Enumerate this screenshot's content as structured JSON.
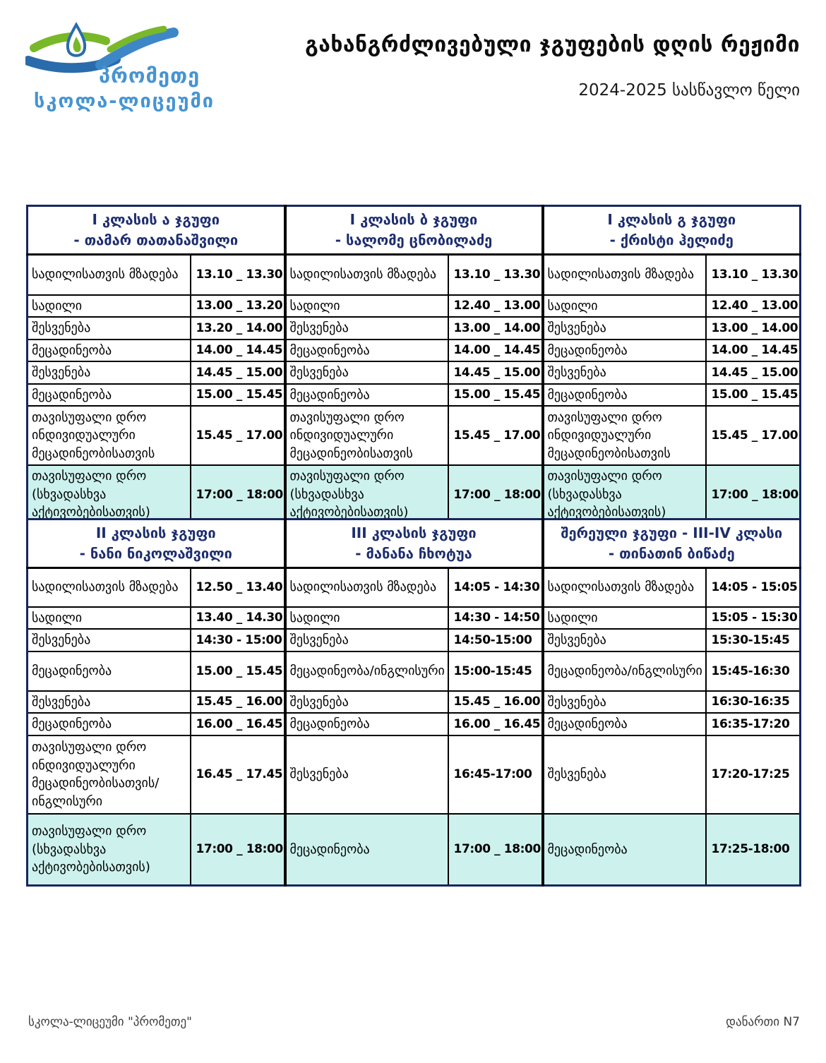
{
  "logo": {
    "name": "პრომეთე",
    "subtitle": "სკოლა-ლიცეუმი",
    "colors": {
      "dark_blue": "#2a6cab",
      "light_blue": "#3e87c7",
      "green": "#79b829",
      "text_blue": "#4794d2"
    }
  },
  "header": {
    "title": "გახანგრძლივებული ჯგუფების დღის რეჟიმი",
    "subtitle": "2024-2025 სასწავლო წელი"
  },
  "colors": {
    "header_text_navy": "#1c2d6e",
    "outer_border_navy": "#17275c",
    "inner_border": "#000000",
    "highlight_row": "#cdf2ee"
  },
  "tables": [
    {
      "id": "table-1",
      "groups": [
        {
          "line1": "I კლასის ა ჯგუფი",
          "line2": "- თამარ თათანაშვილი"
        },
        {
          "line1": "I კლასის ბ ჯგუფი",
          "line2": "- სალომე ცნობილაძე"
        },
        {
          "line1": "I კლასის გ ჯგუფი",
          "line2": "- ქრისტი ჰელიძე"
        }
      ],
      "rows": [
        {
          "highlight": false,
          "cells": [
            {
              "activity": "სადილისათვის მზადება",
              "time": "13.10 _ 13.30"
            },
            {
              "activity": "სადილისათვის მზადება",
              "time": "13.10 _ 13.30"
            },
            {
              "activity": "სადილისათვის მზადება",
              "time": "13.10 _ 13.30"
            }
          ]
        },
        {
          "highlight": false,
          "cells": [
            {
              "activity": "სადილი",
              "time": "13.00 _ 13.20"
            },
            {
              "activity": "სადილი",
              "time": "12.40 _ 13.00"
            },
            {
              "activity": "სადილი",
              "time": "12.40 _ 13.00"
            }
          ]
        },
        {
          "highlight": false,
          "cells": [
            {
              "activity": "შესვენება",
              "time": "13.20 _ 14.00"
            },
            {
              "activity": "შესვენება",
              "time": "13.00 _ 14.00"
            },
            {
              "activity": "შესვენება",
              "time": "13.00 _ 14.00"
            }
          ]
        },
        {
          "highlight": false,
          "cells": [
            {
              "activity": "მეცადინეობა",
              "time": "14.00 _ 14.45"
            },
            {
              "activity": "მეცადინეობა",
              "time": "14.00 _ 14.45"
            },
            {
              "activity": "მეცადინეობა",
              "time": "14.00 _ 14.45"
            }
          ]
        },
        {
          "highlight": false,
          "cells": [
            {
              "activity": "შესვენება",
              "time": "14.45 _ 15.00"
            },
            {
              "activity": "შესვენება",
              "time": "14.45 _ 15.00"
            },
            {
              "activity": "შესვენება",
              "time": "14.45 _ 15.00"
            }
          ]
        },
        {
          "highlight": false,
          "cells": [
            {
              "activity": "მეცადინეობა",
              "time": "15.00 _ 15.45"
            },
            {
              "activity": "მეცადინეობა",
              "time": "15.00 _ 15.45"
            },
            {
              "activity": "მეცადინეობა",
              "time": "15.00 _ 15.45"
            }
          ]
        },
        {
          "highlight": false,
          "cells": [
            {
              "activity": "თავისუფალი დრო ინდივიდუალური მეცადინეობისათვის",
              "time": "15.45 _ 17.00"
            },
            {
              "activity": "თავისუფალი დრო ინდივიდუალური მეცადინეობისათვის",
              "time": "15.45 _ 17.00"
            },
            {
              "activity": "თავისუფალი დრო ინდივიდუალური მეცადინეობისათვის",
              "time": "15.45 _ 17.00"
            }
          ]
        },
        {
          "highlight": true,
          "cells": [
            {
              "activity": "თავისუფალი დრო (სხვადასხვა აქტივობებისათვის)",
              "time": "17:00 _ 18:00"
            },
            {
              "activity": "თავისუფალი დრო (სხვადასხვა აქტივობებისათვის)",
              "time": "17:00 _ 18:00"
            },
            {
              "activity": "თავისუფალი დრო (სხვადასხვა აქტივობებისათვის)",
              "time": "17:00 _ 18:00"
            }
          ]
        }
      ]
    },
    {
      "id": "table-2",
      "groups": [
        {
          "line1": "II კლასის ჯგუფი",
          "line2": "- ნანი ნიკოლაშვილი"
        },
        {
          "line1": "III კლასის ჯგუფი",
          "line2": "- მანანა ჩხოტუა"
        },
        {
          "line1": "შერეული ჯგუფი - III-IV კლასი",
          "line2": "- თინათინ ბიწაძე"
        }
      ],
      "rows": [
        {
          "highlight": false,
          "cells": [
            {
              "activity": "სადილისათვის მზადება",
              "time": "12.50 _ 13.40"
            },
            {
              "activity": "სადილისათვის მზადება",
              "time": "14:05 - 14:30"
            },
            {
              "activity": "სადილისათვის მზადება",
              "time": "14:05 - 15:05"
            }
          ]
        },
        {
          "highlight": false,
          "cells": [
            {
              "activity": "სადილი",
              "time": "13.40 _ 14.30"
            },
            {
              "activity": "სადილი",
              "time": "14:30 - 14:50"
            },
            {
              "activity": "სადილი",
              "time": "15:05 - 15:30"
            }
          ]
        },
        {
          "highlight": false,
          "cells": [
            {
              "activity": "შესვენება",
              "time": "14:30 - 15:00"
            },
            {
              "activity": "შესვენება",
              "time": "14:50-15:00"
            },
            {
              "activity": "შესვენება",
              "time": "15:30-15:45"
            }
          ]
        },
        {
          "highlight": false,
          "cells": [
            {
              "activity": "მეცადინეობა",
              "time": "15.00 _ 15.45"
            },
            {
              "activity": "მეცადინეობა/ინგლისური",
              "time": "15:00-15:45"
            },
            {
              "activity": "მეცადინეობა/ინგლისური",
              "time": "15:45-16:30"
            }
          ]
        },
        {
          "highlight": false,
          "cells": [
            {
              "activity": "შესვენება",
              "time": "15.45 _ 16.00"
            },
            {
              "activity": "შესვენება",
              "time": "15.45 _ 16.00"
            },
            {
              "activity": "შესვენება",
              "time": "16:30-16:35"
            }
          ]
        },
        {
          "highlight": false,
          "cells": [
            {
              "activity": "მეცადინეობა",
              "time": "16.00 _ 16.45"
            },
            {
              "activity": "მეცადინეობა",
              "time": "16.00 _ 16.45"
            },
            {
              "activity": "მეცადინეობა",
              "time": "16:35-17:20"
            }
          ]
        },
        {
          "highlight": false,
          "cells": [
            {
              "activity": "თავისუფალი დრო ინდივიდუალური მეცადინეობისათვის/ინგლისური",
              "time": "16.45 _ 17.45"
            },
            {
              "activity": "შესვენება",
              "time": "16:45-17:00"
            },
            {
              "activity": "შესვენება",
              "time": "17:20-17:25"
            }
          ]
        },
        {
          "highlight": true,
          "cells": [
            {
              "activity": "თავისუფალი დრო (სხვადასხვა აქტივობებისათვის)",
              "time": "17:00 _ 18:00"
            },
            {
              "activity": "მეცადინეობა",
              "time": "17:00 _ 18:00"
            },
            {
              "activity": "მეცადინეობა",
              "time": "17:25-18:00"
            }
          ]
        }
      ]
    }
  ],
  "footer": {
    "left": "სკოლა-ლიცეუმი \"პრომეთე\"",
    "right": "დანართი N7"
  }
}
